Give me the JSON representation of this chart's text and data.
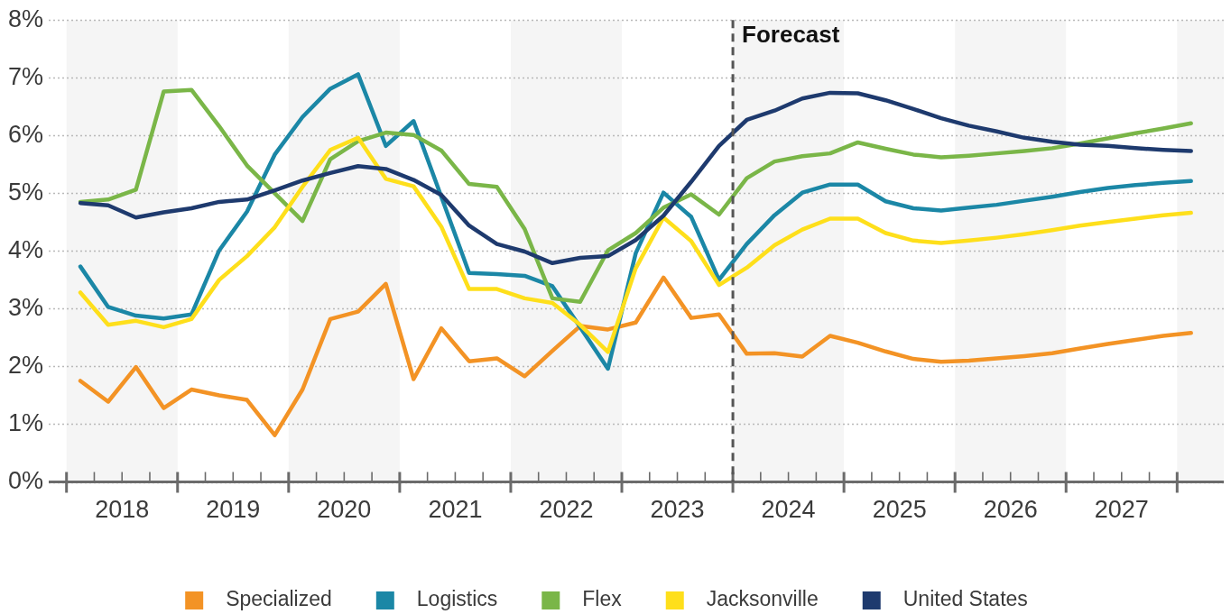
{
  "chart_data": {
    "type": "line",
    "x": [
      2018.125,
      2018.375,
      2018.625,
      2018.875,
      2019.125,
      2019.375,
      2019.625,
      2019.875,
      2020.125,
      2020.375,
      2020.625,
      2020.875,
      2021.125,
      2021.375,
      2021.625,
      2021.875,
      2022.125,
      2022.375,
      2022.625,
      2022.875,
      2023.125,
      2023.375,
      2023.625,
      2023.875,
      2024.125,
      2024.375,
      2024.625,
      2024.875,
      2025.125,
      2025.375,
      2025.625,
      2025.875,
      2026.125,
      2026.375,
      2026.625,
      2026.875,
      2027.125,
      2027.375,
      2027.625,
      2027.875,
      2028.125
    ],
    "series": [
      {
        "name": "Specialized",
        "color": "#f39325",
        "values": [
          1.75,
          1.39,
          1.99,
          1.28,
          1.6,
          1.5,
          1.42,
          0.81,
          1.6,
          2.82,
          2.95,
          3.43,
          1.78,
          2.66,
          2.09,
          2.14,
          1.83,
          2.27,
          2.7,
          2.64,
          2.76,
          3.54,
          2.84,
          2.9,
          2.22,
          2.23,
          2.17,
          2.53,
          2.41,
          2.26,
          2.13,
          2.08,
          2.1,
          2.14,
          2.18,
          2.23,
          2.31,
          2.39,
          2.46,
          2.53,
          2.58
        ]
      },
      {
        "name": "Logistics",
        "color": "#1b87a6",
        "values": [
          3.73,
          3.03,
          2.88,
          2.83,
          2.9,
          4.01,
          4.68,
          5.67,
          6.32,
          6.81,
          7.06,
          5.82,
          6.25,
          4.94,
          3.62,
          3.6,
          3.57,
          3.39,
          2.68,
          1.96,
          3.96,
          5.01,
          4.59,
          3.5,
          4.12,
          4.62,
          5.01,
          5.15,
          5.15,
          4.86,
          4.74,
          4.7,
          4.75,
          4.8,
          4.87,
          4.94,
          5.02,
          5.09,
          5.14,
          5.18,
          5.21
        ]
      },
      {
        "name": "Flex",
        "color": "#7ab648",
        "values": [
          4.85,
          4.89,
          5.06,
          6.76,
          6.79,
          6.16,
          5.48,
          5.0,
          4.52,
          5.59,
          5.9,
          6.05,
          6.01,
          5.74,
          5.16,
          5.11,
          4.38,
          3.18,
          3.12,
          4.01,
          4.31,
          4.75,
          4.98,
          4.63,
          5.26,
          5.55,
          5.64,
          5.69,
          5.88,
          5.77,
          5.67,
          5.62,
          5.65,
          5.69,
          5.73,
          5.78,
          5.86,
          5.95,
          6.04,
          6.12,
          6.21
        ]
      },
      {
        "name": "Jacksonville",
        "color": "#fedf1b",
        "values": [
          3.28,
          2.72,
          2.79,
          2.68,
          2.82,
          3.5,
          3.91,
          4.41,
          5.11,
          5.75,
          5.96,
          5.25,
          5.12,
          4.42,
          3.34,
          3.34,
          3.18,
          3.1,
          2.72,
          2.25,
          3.7,
          4.58,
          4.17,
          3.41,
          3.71,
          4.1,
          4.37,
          4.56,
          4.56,
          4.31,
          4.18,
          4.14,
          4.18,
          4.23,
          4.29,
          4.36,
          4.44,
          4.5,
          4.56,
          4.62,
          4.66
        ]
      },
      {
        "name": "United States",
        "color": "#1e3a6e",
        "values": [
          4.83,
          4.79,
          4.58,
          4.67,
          4.74,
          4.85,
          4.89,
          5.05,
          5.22,
          5.35,
          5.47,
          5.42,
          5.23,
          4.97,
          4.44,
          4.12,
          3.99,
          3.79,
          3.88,
          3.91,
          4.19,
          4.61,
          5.2,
          5.82,
          6.27,
          6.43,
          6.64,
          6.74,
          6.73,
          6.61,
          6.46,
          6.3,
          6.17,
          6.07,
          5.96,
          5.89,
          5.84,
          5.82,
          5.78,
          5.75,
          5.73
        ]
      }
    ],
    "xlim": [
      2017.84,
      2028.42
    ],
    "xticks": [
      {
        "value": 2018,
        "label": null
      },
      {
        "value": 2018.25,
        "label": null
      },
      {
        "value": 2018.5,
        "label": "2018"
      },
      {
        "value": 2018.75,
        "label": null
      },
      {
        "value": 2019,
        "label": null
      },
      {
        "value": 2019.25,
        "label": null
      },
      {
        "value": 2019.5,
        "label": "2019"
      },
      {
        "value": 2019.75,
        "label": null
      },
      {
        "value": 2020,
        "label": null
      },
      {
        "value": 2020.25,
        "label": null
      },
      {
        "value": 2020.5,
        "label": "2020"
      },
      {
        "value": 2020.75,
        "label": null
      },
      {
        "value": 2021,
        "label": null
      },
      {
        "value": 2021.25,
        "label": null
      },
      {
        "value": 2021.5,
        "label": "2021"
      },
      {
        "value": 2021.75,
        "label": null
      },
      {
        "value": 2022,
        "label": null
      },
      {
        "value": 2022.25,
        "label": null
      },
      {
        "value": 2022.5,
        "label": "2022"
      },
      {
        "value": 2022.75,
        "label": null
      },
      {
        "value": 2023,
        "label": null
      },
      {
        "value": 2023.25,
        "label": null
      },
      {
        "value": 2023.5,
        "label": "2023"
      },
      {
        "value": 2023.75,
        "label": null
      },
      {
        "value": 2024,
        "label": null
      },
      {
        "value": 2024.25,
        "label": null
      },
      {
        "value": 2024.5,
        "label": "2024"
      },
      {
        "value": 2024.75,
        "label": null
      },
      {
        "value": 2025,
        "label": null
      },
      {
        "value": 2025.25,
        "label": null
      },
      {
        "value": 2025.5,
        "label": "2025"
      },
      {
        "value": 2025.75,
        "label": null
      },
      {
        "value": 2026,
        "label": null
      },
      {
        "value": 2026.25,
        "label": null
      },
      {
        "value": 2026.5,
        "label": "2026"
      },
      {
        "value": 2026.75,
        "label": null
      },
      {
        "value": 2027,
        "label": null
      },
      {
        "value": 2027.25,
        "label": null
      },
      {
        "value": 2027.5,
        "label": "2027"
      },
      {
        "value": 2027.75,
        "label": null
      },
      {
        "value": 2028,
        "label": null
      }
    ],
    "ylim": [
      0,
      8
    ],
    "yticks": [
      {
        "value": 0,
        "label": "0%"
      },
      {
        "value": 1,
        "label": "1%"
      },
      {
        "value": 2,
        "label": "2%"
      },
      {
        "value": 3,
        "label": "3%"
      },
      {
        "value": 4,
        "label": "4%"
      },
      {
        "value": 5,
        "label": "5%"
      },
      {
        "value": 6,
        "label": "6%"
      },
      {
        "value": 7,
        "label": "7%"
      },
      {
        "value": 8,
        "label": "8%"
      }
    ],
    "grid": "y",
    "legend": "bottom",
    "line_style": "solid",
    "ref_lines": [
      {
        "axis": "x",
        "value": 2024,
        "label": "Forecast",
        "color": "#555555",
        "line_style": "dashed"
      }
    ],
    "bands": [
      {
        "axis": "x",
        "from": 2018,
        "to": 2019,
        "color": "#f5f5f5"
      },
      {
        "axis": "x",
        "from": 2020,
        "to": 2021,
        "color": "#f5f5f5"
      },
      {
        "axis": "x",
        "from": 2022,
        "to": 2023,
        "color": "#f5f5f5"
      },
      {
        "axis": "x",
        "from": 2024,
        "to": 2025,
        "color": "#f5f5f5"
      },
      {
        "axis": "x",
        "from": 2026,
        "to": 2027,
        "color": "#f5f5f5"
      },
      {
        "axis": "x",
        "from": 2028,
        "to": 2028.42,
        "color": "#f5f5f5"
      }
    ]
  }
}
